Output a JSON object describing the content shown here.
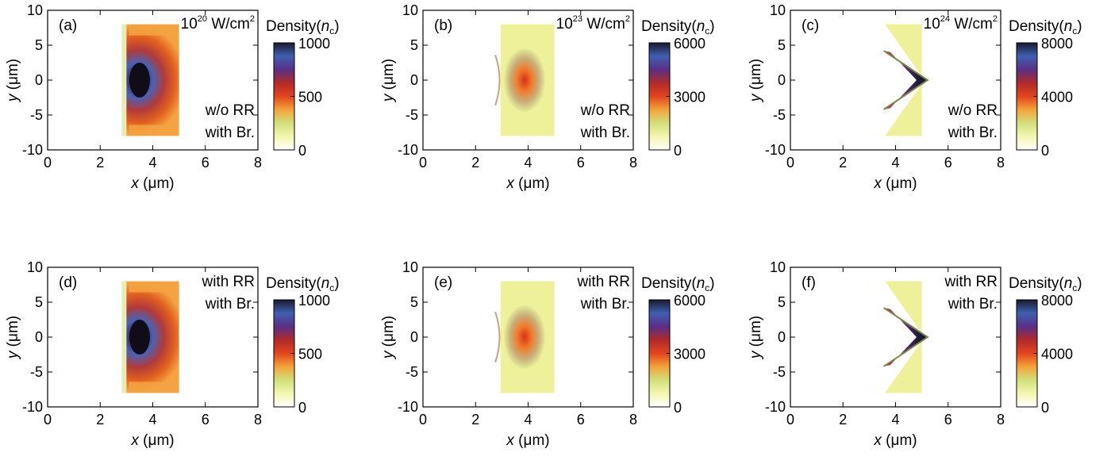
{
  "density_colors": [
    "#ffffff",
    "#f4f6b0",
    "#d2e07a",
    "#f3a23a",
    "#e2451d",
    "#b02a2a",
    "#5a2f86",
    "#3f5fb0",
    "#1a1a2e"
  ],
  "target_color": "#eef19a",
  "chart_data": [
    {
      "type": "heatmap",
      "panel_label": "(a)",
      "intensity": {
        "base": "10",
        "exp": "20",
        "unit": "W/cm",
        "unit_exp": "2"
      },
      "case_lines": [
        "w/o RR",
        "with Br."
      ],
      "xlabel": {
        "var": "x",
        "unit": " (μm)"
      },
      "ylabel": {
        "var": "y",
        "unit": " (μm)"
      },
      "xlim": [
        0,
        8
      ],
      "ylim": [
        -10,
        10
      ],
      "xticks": [
        "0",
        "2",
        "4",
        "6",
        "8"
      ],
      "yticks": [
        "10",
        "5",
        "0",
        "-5",
        "-10"
      ],
      "shape": "slab",
      "region": {
        "x0": 3.0,
        "x1": 5.0,
        "y0": -8,
        "y1": 8
      },
      "peak_x": 3.5,
      "colorbar": {
        "title_prefix": "Density(",
        "title_var": "n",
        "title_sub": "c",
        "title_suffix": ")",
        "min": 0,
        "max": 1000,
        "ticks": [
          "1000",
          "500",
          "0"
        ]
      }
    },
    {
      "type": "heatmap",
      "panel_label": "(b)",
      "intensity": {
        "base": "10",
        "exp": "23",
        "unit": "W/cm",
        "unit_exp": "2"
      },
      "case_lines": [
        "w/o RR",
        "with Br."
      ],
      "xlabel": {
        "var": "x",
        "unit": " (μm)"
      },
      "ylabel": {
        "var": "y",
        "unit": " (μm)"
      },
      "xlim": [
        0,
        8
      ],
      "ylim": [
        -10,
        10
      ],
      "xticks": [
        "0",
        "2",
        "4",
        "6",
        "8"
      ],
      "yticks": [
        "10",
        "5",
        "0",
        "-5",
        "-10"
      ],
      "shape": "cavity",
      "region": {
        "x0": 2.6,
        "x1": 5.0,
        "y0": -8,
        "y1": 8
      },
      "apex_x": 3.2,
      "colorbar": {
        "title_prefix": "Density(",
        "title_var": "n",
        "title_sub": "c",
        "title_suffix": ")",
        "min": 0,
        "max": 6000,
        "ticks": [
          "6000",
          "3000",
          "0"
        ]
      }
    },
    {
      "type": "heatmap",
      "panel_label": "(c)",
      "intensity": {
        "base": "10",
        "exp": "24",
        "unit": "W/cm",
        "unit_exp": "2"
      },
      "case_lines": [
        "w/o RR",
        "with Br."
      ],
      "xlabel": {
        "var": "x",
        "unit": " (μm)"
      },
      "ylabel": {
        "var": "y",
        "unit": " (μm)"
      },
      "xlim": [
        0,
        8
      ],
      "ylim": [
        -10,
        10
      ],
      "xticks": [
        "0",
        "2",
        "4",
        "6",
        "8"
      ],
      "yticks": [
        "10",
        "5",
        "0",
        "-5",
        "-10"
      ],
      "shape": "chevron",
      "region": {
        "x0": 3.0,
        "x1": 5.0,
        "y0": -8,
        "y1": 8
      },
      "apex_x": 5.1,
      "colorbar": {
        "title_prefix": "Density(",
        "title_var": "n",
        "title_sub": "c",
        "title_suffix": ")",
        "min": 0,
        "max": 8000,
        "ticks": [
          "8000",
          "4000",
          "0"
        ]
      }
    },
    {
      "type": "heatmap",
      "panel_label": "(d)",
      "intensity": null,
      "case_lines": [
        "with RR",
        "with Br."
      ],
      "xlabel": {
        "var": "x",
        "unit": " (μm)"
      },
      "ylabel": {
        "var": "y",
        "unit": " (μm)"
      },
      "xlim": [
        0,
        8
      ],
      "ylim": [
        -10,
        10
      ],
      "xticks": [
        "0",
        "2",
        "4",
        "6",
        "8"
      ],
      "yticks": [
        "10",
        "5",
        "0",
        "-5",
        "-10"
      ],
      "shape": "slab",
      "region": {
        "x0": 3.0,
        "x1": 5.0,
        "y0": -8,
        "y1": 8
      },
      "peak_x": 3.5,
      "colorbar": {
        "title_prefix": "Density(",
        "title_var": "n",
        "title_sub": "c",
        "title_suffix": ")",
        "min": 0,
        "max": 1000,
        "ticks": [
          "1000",
          "500",
          "0"
        ]
      }
    },
    {
      "type": "heatmap",
      "panel_label": "(e)",
      "intensity": null,
      "case_lines": [
        "with RR",
        "with Br."
      ],
      "xlabel": {
        "var": "x",
        "unit": " (μm)"
      },
      "ylabel": {
        "var": "y",
        "unit": " (μm)"
      },
      "xlim": [
        0,
        8
      ],
      "ylim": [
        -10,
        10
      ],
      "xticks": [
        "0",
        "2",
        "4",
        "6",
        "8"
      ],
      "yticks": [
        "10",
        "5",
        "0",
        "-5",
        "-10"
      ],
      "shape": "cavity",
      "region": {
        "x0": 2.6,
        "x1": 5.0,
        "y0": -8,
        "y1": 8
      },
      "apex_x": 3.2,
      "colorbar": {
        "title_prefix": "Density(",
        "title_var": "n",
        "title_sub": "c",
        "title_suffix": ")",
        "min": 0,
        "max": 6000,
        "ticks": [
          "6000",
          "3000",
          "0"
        ]
      }
    },
    {
      "type": "heatmap",
      "panel_label": "(f)",
      "intensity": null,
      "case_lines": [
        "with RR",
        "with Br."
      ],
      "xlabel": {
        "var": "x",
        "unit": " (μm)"
      },
      "ylabel": {
        "var": "y",
        "unit": " (μm)"
      },
      "xlim": [
        0,
        8
      ],
      "ylim": [
        -10,
        10
      ],
      "xticks": [
        "0",
        "2",
        "4",
        "6",
        "8"
      ],
      "yticks": [
        "10",
        "5",
        "0",
        "-5",
        "-10"
      ],
      "shape": "chevron",
      "region": {
        "x0": 3.0,
        "x1": 5.0,
        "y0": -8,
        "y1": 8
      },
      "apex_x": 5.1,
      "colorbar": {
        "title_prefix": "Density(",
        "title_var": "n",
        "title_sub": "c",
        "title_suffix": ")",
        "min": 0,
        "max": 8000,
        "ticks": [
          "8000",
          "4000",
          "0"
        ]
      }
    }
  ]
}
